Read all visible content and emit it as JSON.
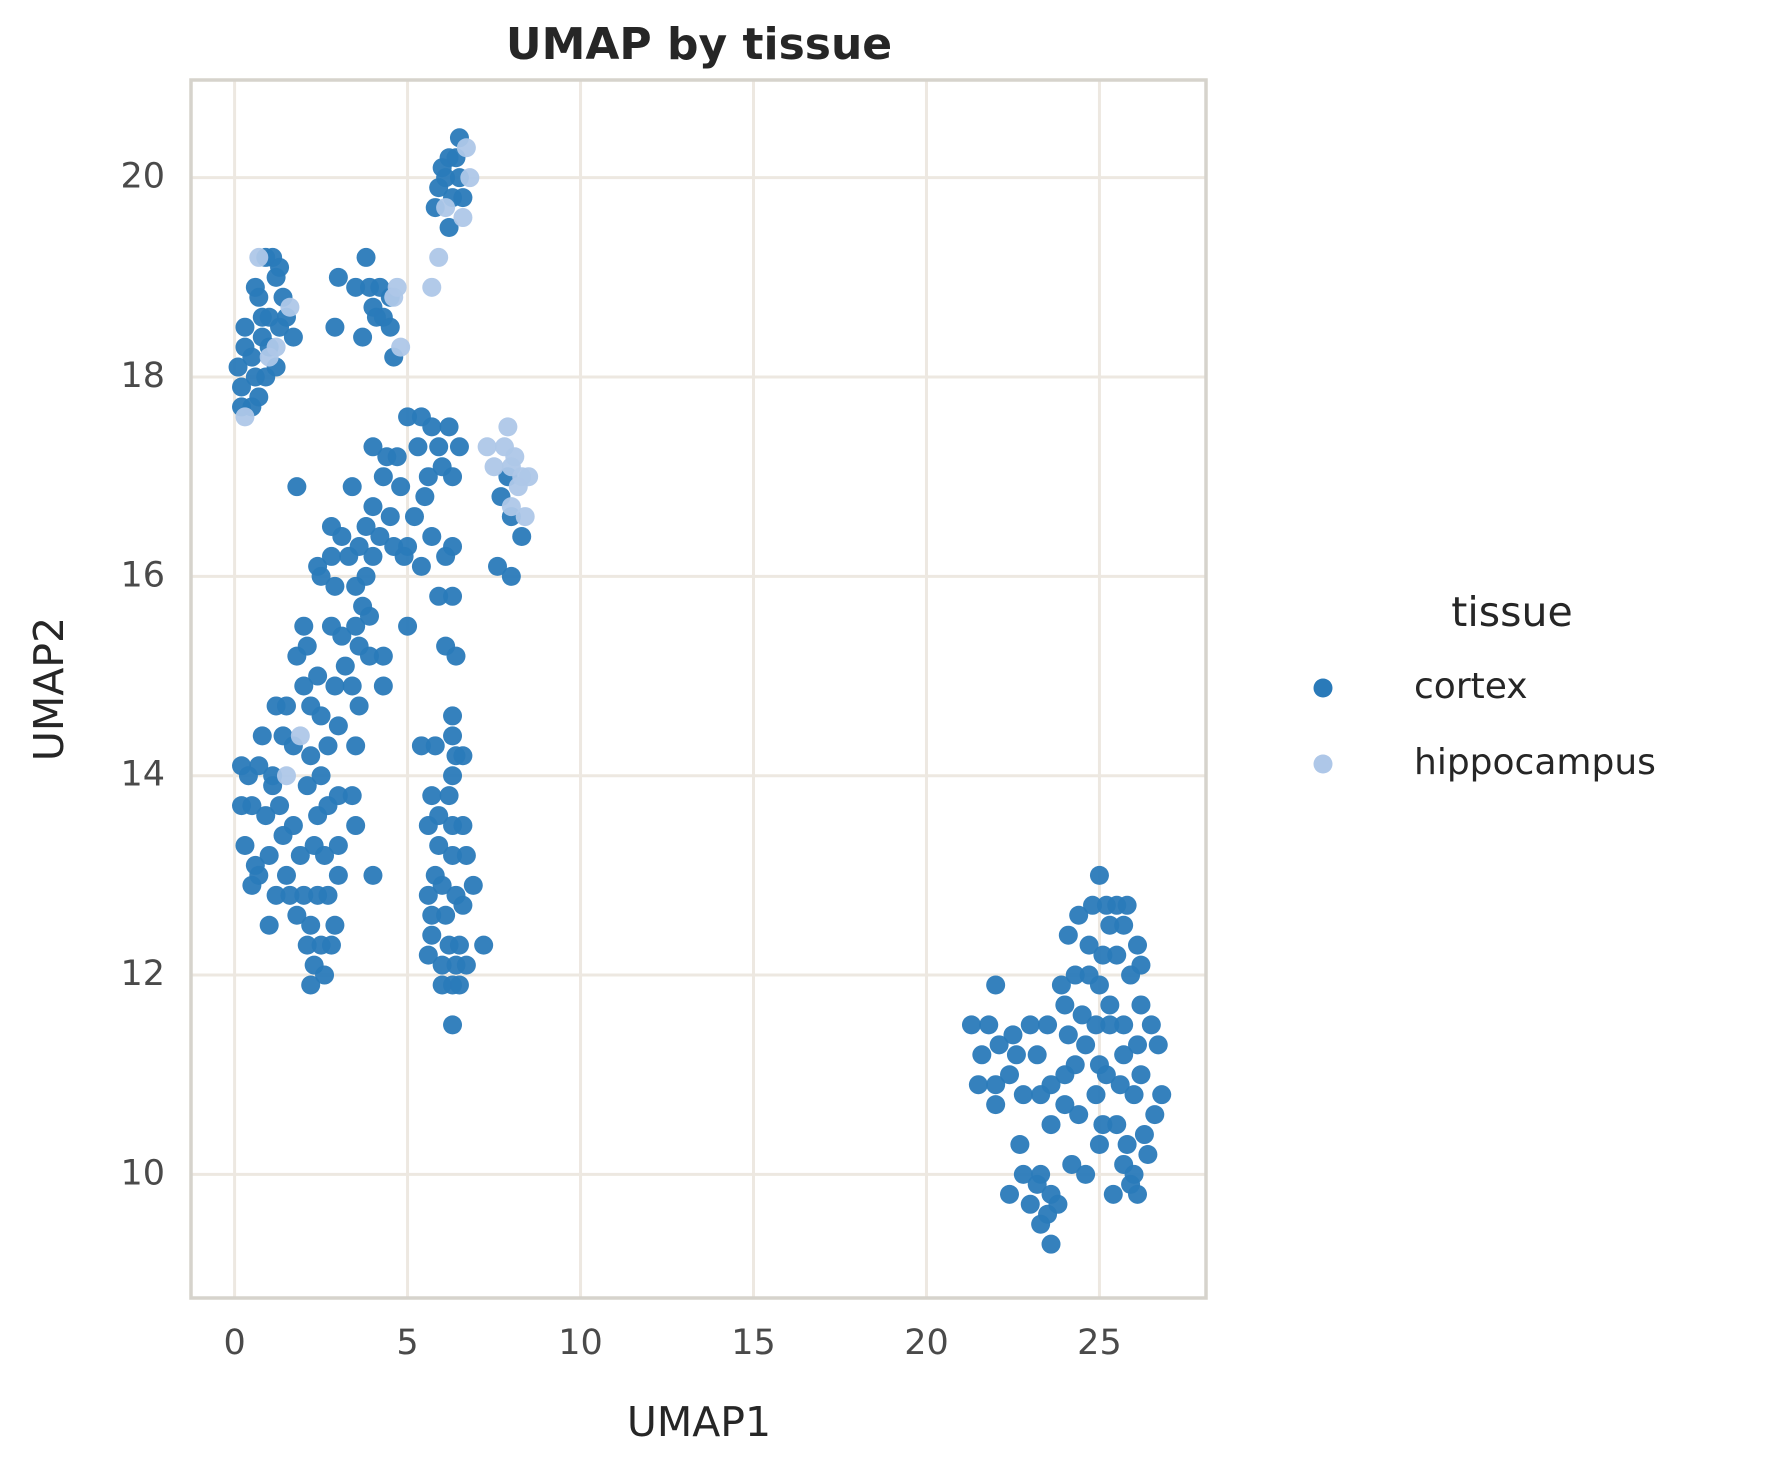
{
  "chart_data": {
    "type": "scatter",
    "title": "UMAP by tissue",
    "x_label": "UMAP1",
    "y_label": "UMAP2",
    "legend_title": "tissue",
    "legend_position": "right",
    "grid": true,
    "xlim": [
      -1.26,
      28.08
    ],
    "ylim": [
      8.76,
      20.98
    ],
    "xticks": [
      0,
      5,
      10,
      15,
      20,
      25
    ],
    "yticks": [
      10,
      12,
      14,
      16,
      18,
      20
    ],
    "series": [
      {
        "name": "cortex",
        "color": "#2a7ab9",
        "x": [
          0.1,
          0.2,
          0.3,
          0.3,
          0.2,
          0.5,
          0.6,
          0.7,
          0.9,
          0.8,
          0.7,
          0.6,
          0.9,
          1.1,
          1.2,
          1.3,
          1.0,
          1.3,
          1.4,
          1.5,
          1.7,
          1.2,
          0.5,
          1.0,
          0.8,
          3.0,
          2.9,
          3.5,
          3.8,
          3.9,
          4.2,
          4.0,
          4.3,
          4.5,
          3.7,
          4.6,
          4.5,
          4.1,
          6.5,
          6.2,
          6.0,
          6.4,
          6.1,
          6.5,
          5.9,
          6.3,
          6.6,
          5.8,
          6.2,
          5.0,
          5.4,
          6.2,
          5.7,
          5.3,
          6.5,
          4.0,
          4.4,
          4.7,
          5.9,
          6.0,
          6.3,
          5.6,
          4.3,
          3.4,
          4.8,
          5.5,
          1.8,
          4.0,
          4.5,
          5.2,
          3.8,
          4.2,
          4.6,
          5.0,
          5.7,
          6.3,
          2.8,
          3.1,
          3.6,
          4.0,
          2.4,
          2.8,
          3.3,
          4.9,
          5.4,
          6.1,
          3.8,
          2.5,
          3.5,
          2.9,
          3.7,
          5.0,
          5.9,
          6.3,
          2.8,
          3.1,
          3.5,
          3.9,
          2.0,
          2.1,
          1.8,
          3.6,
          3.9,
          4.3,
          6.1,
          6.4,
          2.4,
          3.2,
          2.0,
          2.2,
          2.9,
          3.4,
          4.3,
          1.2,
          1.5,
          2.5,
          3.6,
          3.0,
          2.7,
          3.5,
          2.2,
          1.4,
          0.8,
          1.7,
          7.7,
          8.0,
          8.3,
          7.6,
          8.0,
          7.9,
          0.2,
          0.4,
          0.7,
          0.2,
          0.5,
          0.9,
          1.1,
          1.3,
          0.3,
          0.6,
          1.0,
          1.4,
          1.7,
          2.1,
          2.5,
          2.7,
          3.0,
          3.4,
          2.3,
          2.6,
          1.9,
          1.5,
          1.2,
          0.7,
          0.5,
          2.0,
          2.4,
          2.7,
          3.0,
          3.0,
          1.8,
          2.2,
          1.0,
          2.9,
          2.1,
          2.5,
          2.8,
          2.3,
          2.6,
          2.2,
          4.0,
          1.6,
          1.1,
          2.4,
          3.5,
          6.3,
          6.3,
          5.4,
          5.8,
          6.4,
          6.6,
          6.3,
          6.2,
          5.7,
          5.9,
          5.6,
          6.3,
          6.6,
          5.9,
          6.3,
          6.7,
          5.8,
          6.0,
          6.4,
          6.9,
          5.6,
          5.7,
          6.1,
          6.6,
          5.7,
          6.2,
          6.5,
          7.2,
          5.6,
          6.0,
          6.4,
          6.7,
          6.0,
          6.3,
          6.5,
          6.3,
          25.0,
          25.2,
          24.8,
          25.5,
          25.8,
          24.4,
          25.3,
          25.7,
          24.1,
          24.7,
          25.1,
          25.5,
          26.1,
          26.2,
          23.9,
          24.3,
          24.7,
          25.0,
          25.9,
          22.0,
          24.0,
          24.5,
          25.3,
          25.7,
          26.2,
          24.9,
          21.3,
          21.8,
          22.5,
          23.0,
          23.5,
          24.1,
          24.6,
          25.3,
          26.5,
          21.6,
          22.1,
          22.6,
          25.0,
          25.7,
          26.1,
          26.7,
          22.0,
          22.4,
          23.2,
          23.6,
          24.0,
          24.3,
          25.2,
          25.6,
          26.2,
          21.5,
          22.8,
          23.3,
          24.9,
          26.0,
          26.8,
          22.0,
          24.0,
          24.4,
          26.6,
          23.6,
          25.1,
          25.5,
          26.3,
          22.7,
          25.0,
          25.8,
          26.4,
          24.2,
          25.7,
          26.0,
          22.8,
          23.3,
          23.2,
          23.6,
          24.6,
          25.9,
          26.1,
          25.4,
          22.4,
          23.0,
          23.5,
          23.8,
          23.3,
          23.6
        ],
        "y": [
          18.1,
          17.9,
          18.3,
          18.5,
          17.7,
          17.7,
          18.0,
          17.8,
          18.0,
          18.4,
          18.8,
          18.9,
          19.2,
          19.2,
          19.0,
          19.1,
          18.6,
          18.5,
          18.8,
          18.6,
          18.4,
          18.1,
          18.2,
          18.3,
          18.6,
          19.0,
          18.5,
          18.9,
          19.2,
          18.9,
          18.9,
          18.7,
          18.6,
          18.5,
          18.4,
          18.2,
          18.8,
          18.6,
          20.4,
          20.2,
          20.1,
          20.2,
          20.0,
          20.0,
          19.9,
          19.8,
          19.8,
          19.7,
          19.5,
          17.6,
          17.6,
          17.5,
          17.5,
          17.3,
          17.3,
          17.3,
          17.2,
          17.2,
          17.3,
          17.1,
          17.0,
          17.0,
          17.0,
          16.9,
          16.9,
          16.8,
          16.9,
          16.7,
          16.6,
          16.6,
          16.5,
          16.4,
          16.3,
          16.3,
          16.4,
          16.3,
          16.5,
          16.4,
          16.3,
          16.2,
          16.1,
          16.2,
          16.2,
          16.2,
          16.1,
          16.2,
          16.0,
          16.0,
          15.9,
          15.9,
          15.7,
          15.5,
          15.8,
          15.8,
          15.5,
          15.4,
          15.5,
          15.6,
          15.5,
          15.3,
          15.2,
          15.3,
          15.2,
          15.2,
          15.3,
          15.2,
          15.0,
          15.1,
          14.9,
          14.7,
          14.9,
          14.9,
          14.9,
          14.7,
          14.7,
          14.6,
          14.7,
          14.5,
          14.3,
          14.3,
          14.2,
          14.4,
          14.4,
          14.3,
          16.8,
          16.6,
          16.4,
          16.1,
          16.0,
          17.0,
          14.1,
          14.0,
          14.1,
          13.7,
          13.7,
          13.6,
          13.9,
          13.7,
          13.3,
          13.1,
          13.2,
          13.4,
          13.5,
          13.9,
          14.0,
          13.7,
          13.8,
          13.8,
          13.3,
          13.2,
          13.2,
          13.0,
          12.8,
          13.0,
          12.9,
          12.8,
          12.8,
          12.8,
          13.0,
          13.3,
          12.6,
          12.5,
          12.5,
          12.5,
          12.3,
          12.3,
          12.3,
          12.1,
          12.0,
          11.9,
          13.0,
          12.8,
          14.0,
          13.6,
          13.5,
          14.6,
          14.4,
          14.3,
          14.3,
          14.2,
          14.2,
          14.0,
          13.8,
          13.8,
          13.6,
          13.5,
          13.5,
          13.5,
          13.3,
          13.2,
          13.2,
          13.0,
          12.9,
          12.8,
          12.9,
          12.8,
          12.6,
          12.6,
          12.7,
          12.4,
          12.3,
          12.3,
          12.3,
          12.2,
          12.1,
          12.1,
          12.1,
          11.9,
          11.9,
          11.9,
          11.5,
          13.0,
          12.7,
          12.7,
          12.7,
          12.7,
          12.6,
          12.5,
          12.5,
          12.4,
          12.3,
          12.2,
          12.2,
          12.3,
          12.1,
          11.9,
          12.0,
          12.0,
          11.9,
          12.0,
          11.9,
          11.7,
          11.6,
          11.7,
          11.5,
          11.7,
          11.5,
          11.5,
          11.5,
          11.4,
          11.5,
          11.5,
          11.4,
          11.3,
          11.5,
          11.5,
          11.2,
          11.3,
          11.2,
          11.1,
          11.2,
          11.3,
          11.3,
          10.9,
          11.0,
          11.2,
          10.9,
          11.0,
          11.1,
          11.0,
          10.9,
          11.0,
          10.9,
          10.8,
          10.8,
          10.8,
          10.8,
          10.8,
          10.7,
          10.7,
          10.6,
          10.6,
          10.5,
          10.5,
          10.5,
          10.4,
          10.3,
          10.3,
          10.3,
          10.2,
          10.1,
          10.1,
          10.0,
          10.0,
          10.0,
          9.9,
          9.8,
          10.0,
          9.9,
          9.8,
          9.8,
          9.8,
          9.7,
          9.6,
          9.7,
          9.5,
          9.3
        ]
      },
      {
        "name": "hippocampus",
        "color": "#aec7e8",
        "x": [
          0.7,
          0.3,
          1.6,
          1.2,
          1.0,
          4.7,
          4.8,
          4.6,
          6.7,
          6.8,
          6.1,
          6.6,
          5.9,
          5.7,
          7.3,
          7.5,
          7.8,
          7.9,
          8.0,
          8.1,
          8.3,
          8.5,
          8.2,
          8.4,
          8.0,
          1.9,
          1.5
        ],
        "y": [
          19.2,
          17.6,
          18.7,
          18.3,
          18.2,
          18.9,
          18.3,
          18.8,
          20.3,
          20.0,
          19.7,
          19.6,
          19.2,
          18.9,
          17.3,
          17.1,
          17.3,
          17.5,
          17.1,
          17.2,
          17.0,
          17.0,
          16.9,
          16.6,
          16.7,
          14.4,
          14.0
        ]
      }
    ]
  }
}
